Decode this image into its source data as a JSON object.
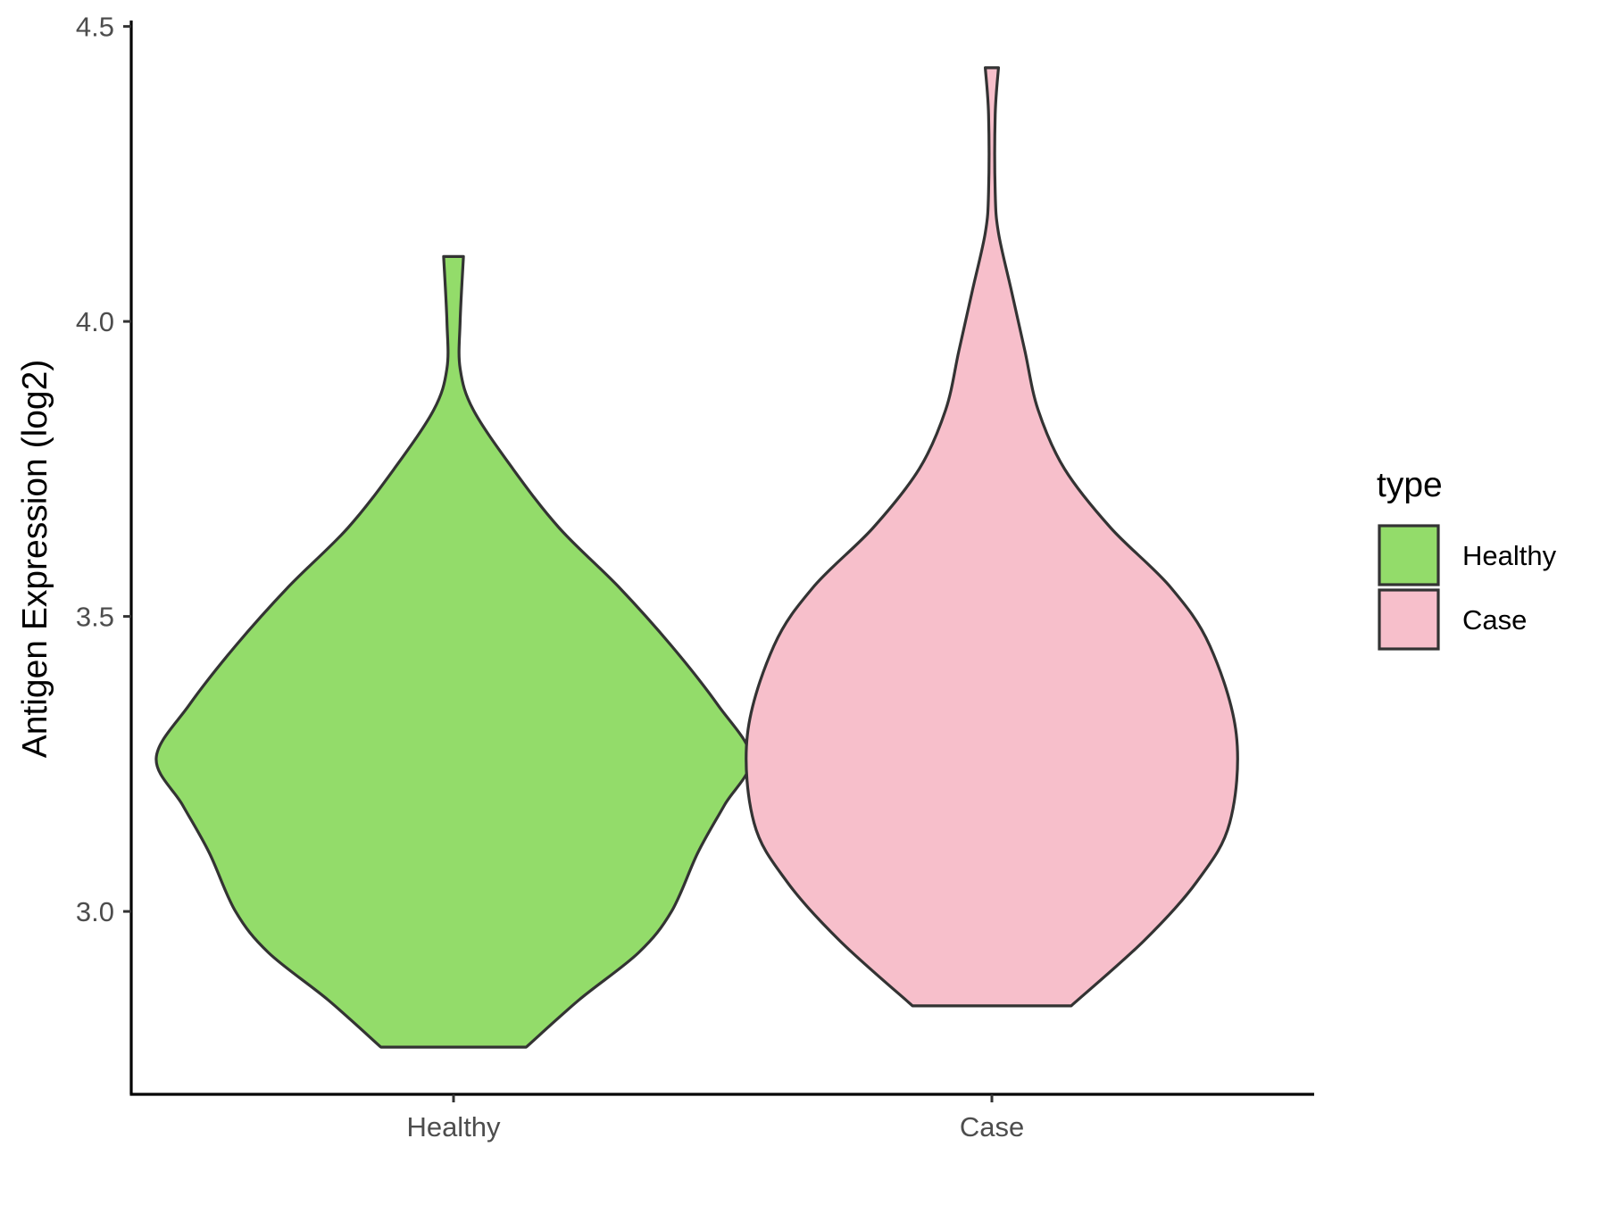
{
  "chart_data": {
    "type": "violin",
    "ylabel": "Antigen Expression (log2)",
    "xlabel": "",
    "ylim": [
      2.69,
      4.51
    ],
    "yticks": [
      "3.0",
      "3.5",
      "4.0",
      "4.5"
    ],
    "categories": [
      "Healthy",
      "Case"
    ],
    "grid": false,
    "legend": {
      "title": "type",
      "position": "right",
      "entries": [
        {
          "label": "Healthy",
          "color": "#93dc6a"
        },
        {
          "label": "Case",
          "color": "#f7bfcb"
        }
      ]
    },
    "series": [
      {
        "name": "Healthy",
        "color": "#93dc6a",
        "min": 2.77,
        "max": 4.11,
        "density_profile": [
          [
            2.77,
            0.11
          ],
          [
            2.85,
            0.19
          ],
          [
            2.93,
            0.28
          ],
          [
            3.0,
            0.33
          ],
          [
            3.1,
            0.37
          ],
          [
            3.18,
            0.41
          ],
          [
            3.26,
            0.45
          ],
          [
            3.35,
            0.4
          ],
          [
            3.45,
            0.33
          ],
          [
            3.55,
            0.25
          ],
          [
            3.65,
            0.16
          ],
          [
            3.75,
            0.09
          ],
          [
            3.85,
            0.03
          ],
          [
            3.92,
            0.01
          ],
          [
            4.0,
            0.01
          ],
          [
            4.11,
            0.015
          ]
        ]
      },
      {
        "name": "Case",
        "color": "#f7bfcb",
        "min": 2.84,
        "max": 4.43,
        "density_profile": [
          [
            2.84,
            0.12
          ],
          [
            2.95,
            0.23
          ],
          [
            3.05,
            0.31
          ],
          [
            3.15,
            0.36
          ],
          [
            3.3,
            0.37
          ],
          [
            3.45,
            0.33
          ],
          [
            3.55,
            0.27
          ],
          [
            3.65,
            0.18
          ],
          [
            3.75,
            0.11
          ],
          [
            3.85,
            0.07
          ],
          [
            3.95,
            0.05
          ],
          [
            4.05,
            0.03
          ],
          [
            4.15,
            0.01
          ],
          [
            4.22,
            0.005
          ],
          [
            4.35,
            0.005
          ],
          [
            4.43,
            0.01
          ]
        ]
      }
    ]
  }
}
